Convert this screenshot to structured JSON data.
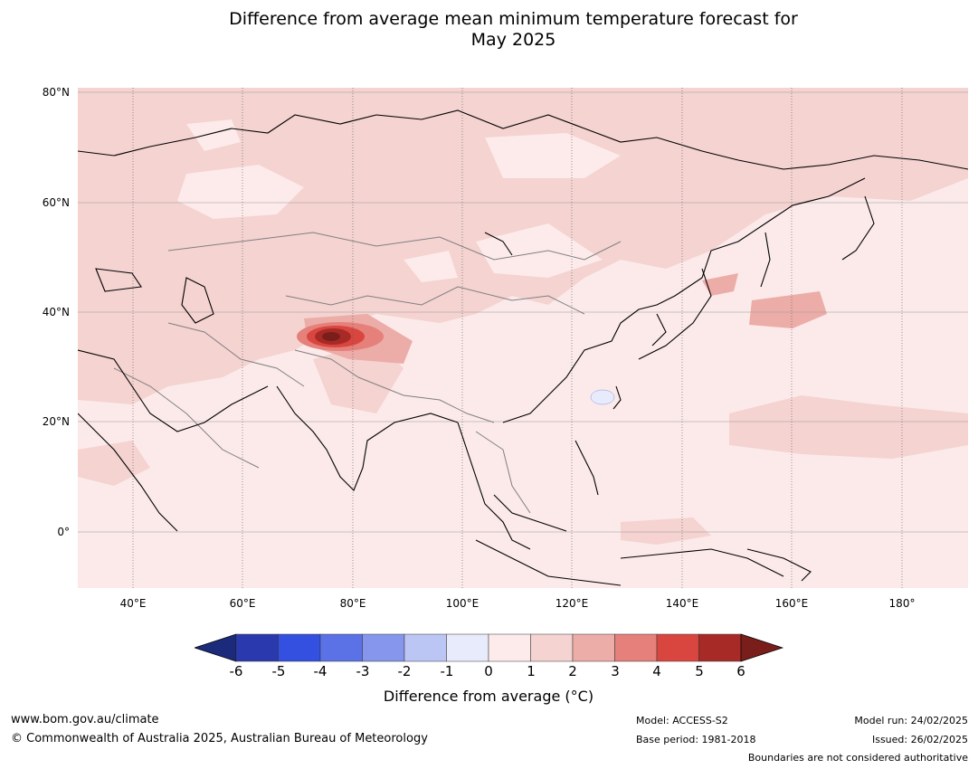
{
  "title": {
    "line1": "Difference from average mean minimum temperature forecast for",
    "line2": "May 2025"
  },
  "map": {
    "lat_labels": [
      "80°N",
      "60°N",
      "40°N",
      "20°N",
      "0°"
    ],
    "lon_labels": [
      "40°E",
      "60°E",
      "80°E",
      "100°E",
      "120°E",
      "140°E",
      "160°E",
      "180°"
    ],
    "background_color": "#fbeae9",
    "coastline_color": "#000000",
    "border_color": "#808080"
  },
  "colorbar": {
    "ticks": [
      "-6",
      "-5",
      "-4",
      "-3",
      "-2",
      "-1",
      "0",
      "1",
      "2",
      "3",
      "4",
      "5",
      "6"
    ],
    "colors": [
      "#1b2a7a",
      "#2a3aae",
      "#3350e0",
      "#5b72e6",
      "#8696ec",
      "#bcc6f5",
      "#e8ebfb",
      "#fcebea",
      "#f4d3d1",
      "#ecaca8",
      "#e5807a",
      "#d9463f",
      "#a82a26",
      "#7a1e1b"
    ],
    "label": "Difference from average (",
    "label_unit": "°C)"
  },
  "footer": {
    "url": "www.bom.gov.au/climate",
    "copyright": "© Commonwealth of Australia 2025, Australian Bureau of Meteorology",
    "model": "Model: ACCESS-S2",
    "base_period": "Base period: 1981-2018",
    "model_run": "Model run: 24/02/2025",
    "issued": "Issued: 26/02/2025",
    "disclaimer": "Boundaries are not considered authoritative"
  }
}
